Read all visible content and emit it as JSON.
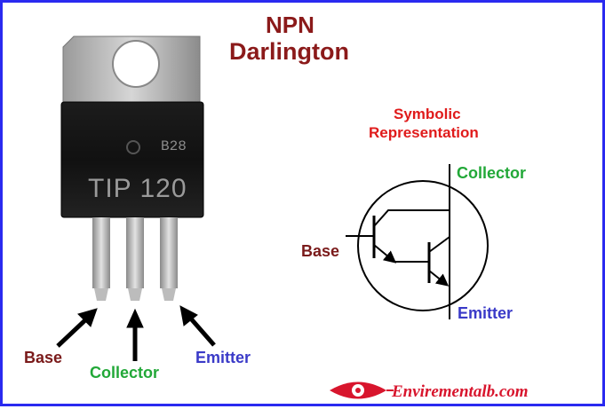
{
  "title": {
    "line1": "NPN",
    "line2": "Darlington"
  },
  "package": {
    "code": "B28",
    "part_number": "TIP 120"
  },
  "symbol": {
    "heading_line1": "Symbolic",
    "heading_line2": "Representation",
    "collector": "Collector",
    "base": "Base",
    "emitter": "Emitter"
  },
  "pins": {
    "base": "Base",
    "collector": "Collector",
    "emitter": "Emitter"
  },
  "brand": {
    "text": "Envirementalb.com",
    "logo_icon": "eye-logo-icon"
  },
  "colors": {
    "border": "#2a2af0",
    "title": "#8b1a1a",
    "heading": "#e01b1b",
    "collector": "#22a838",
    "base": "#7a1a1a",
    "emitter": "#3a3ac8",
    "brand": "#d8152d"
  }
}
